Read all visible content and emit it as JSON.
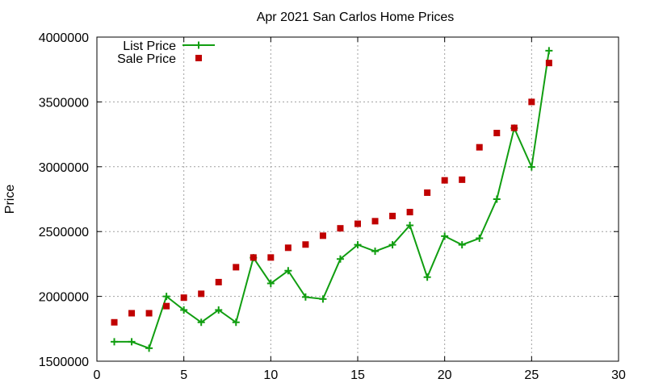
{
  "chart_data": {
    "type": "line",
    "title": "Apr 2021 San Carlos Home Prices",
    "xlabel": "",
    "ylabel": "Price",
    "xlim": [
      0,
      30
    ],
    "ylim": [
      1500000,
      4000000
    ],
    "xticks": [
      0,
      5,
      10,
      15,
      20,
      25,
      30
    ],
    "yticks": [
      1500000,
      2000000,
      2500000,
      3000000,
      3500000,
      4000000
    ],
    "grid": true,
    "legend_position": "top-left",
    "series": [
      {
        "name": "List Price",
        "style": "line-points",
        "color": "#119e11",
        "x": [
          1,
          2,
          3,
          4,
          5,
          6,
          7,
          8,
          9,
          10,
          11,
          12,
          13,
          14,
          15,
          16,
          17,
          18,
          19,
          20,
          21,
          22,
          23,
          24,
          25,
          26
        ],
        "y": [
          1650000,
          1650000,
          1600000,
          2000000,
          1895000,
          1800000,
          1895000,
          1800000,
          2298000,
          2100000,
          2198000,
          1995000,
          1980000,
          2288000,
          2398000,
          2348000,
          2398000,
          2548000,
          2148000,
          2465000,
          2398000,
          2448000,
          2750000,
          3298000,
          2998000,
          3895000
        ]
      },
      {
        "name": "Sale Price",
        "style": "points",
        "color": "#c00000",
        "x": [
          1,
          2,
          3,
          4,
          5,
          6,
          7,
          8,
          9,
          10,
          11,
          12,
          13,
          14,
          15,
          16,
          17,
          18,
          19,
          20,
          21,
          22,
          23,
          24,
          25,
          26
        ],
        "y": [
          1800000,
          1870000,
          1870000,
          1925000,
          1990000,
          2020000,
          2110000,
          2225000,
          2300000,
          2300000,
          2375000,
          2400000,
          2468000,
          2525000,
          2560000,
          2580000,
          2620000,
          2650000,
          2800000,
          2895000,
          2900000,
          3150000,
          3260000,
          3300000,
          3500000,
          3800000
        ]
      }
    ]
  }
}
